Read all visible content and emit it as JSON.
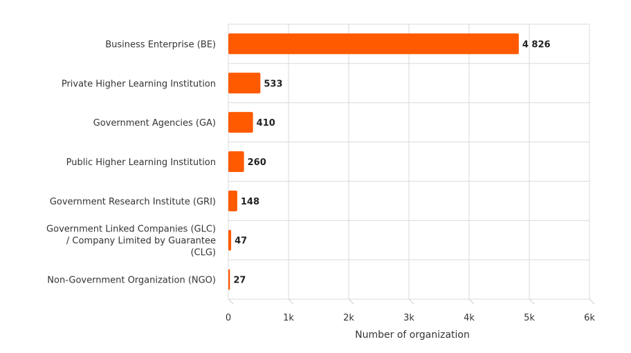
{
  "chart_data": {
    "type": "bar",
    "orientation": "horizontal",
    "title": "",
    "xlabel": "Number of organization",
    "ylabel": "",
    "xlim": [
      0,
      6000
    ],
    "grid": true,
    "legend": "none",
    "bar_color": "#FF5A00",
    "categories": [
      [
        "Business Enterprise (BE)"
      ],
      [
        "Private Higher Learning Institution"
      ],
      [
        "Government Agencies (GA)"
      ],
      [
        "Public Higher Learning Institution"
      ],
      [
        "Government Research Institute (GRI)"
      ],
      [
        "Government Linked Companies (GLC)",
        "/ Company Limited by Guarantee",
        "(CLG)"
      ],
      [
        "Non-Government Organization (NGO)"
      ]
    ],
    "values": [
      4826,
      533,
      410,
      260,
      148,
      47,
      27
    ],
    "data_labels": [
      "4 826",
      "533",
      "410",
      "260",
      "148",
      "47",
      "27"
    ],
    "ticks": [
      0,
      1000,
      2000,
      3000,
      4000,
      5000,
      6000
    ],
    "tick_labels": [
      "0",
      "1k",
      "2k",
      "3k",
      "4k",
      "5k",
      "6k"
    ]
  }
}
